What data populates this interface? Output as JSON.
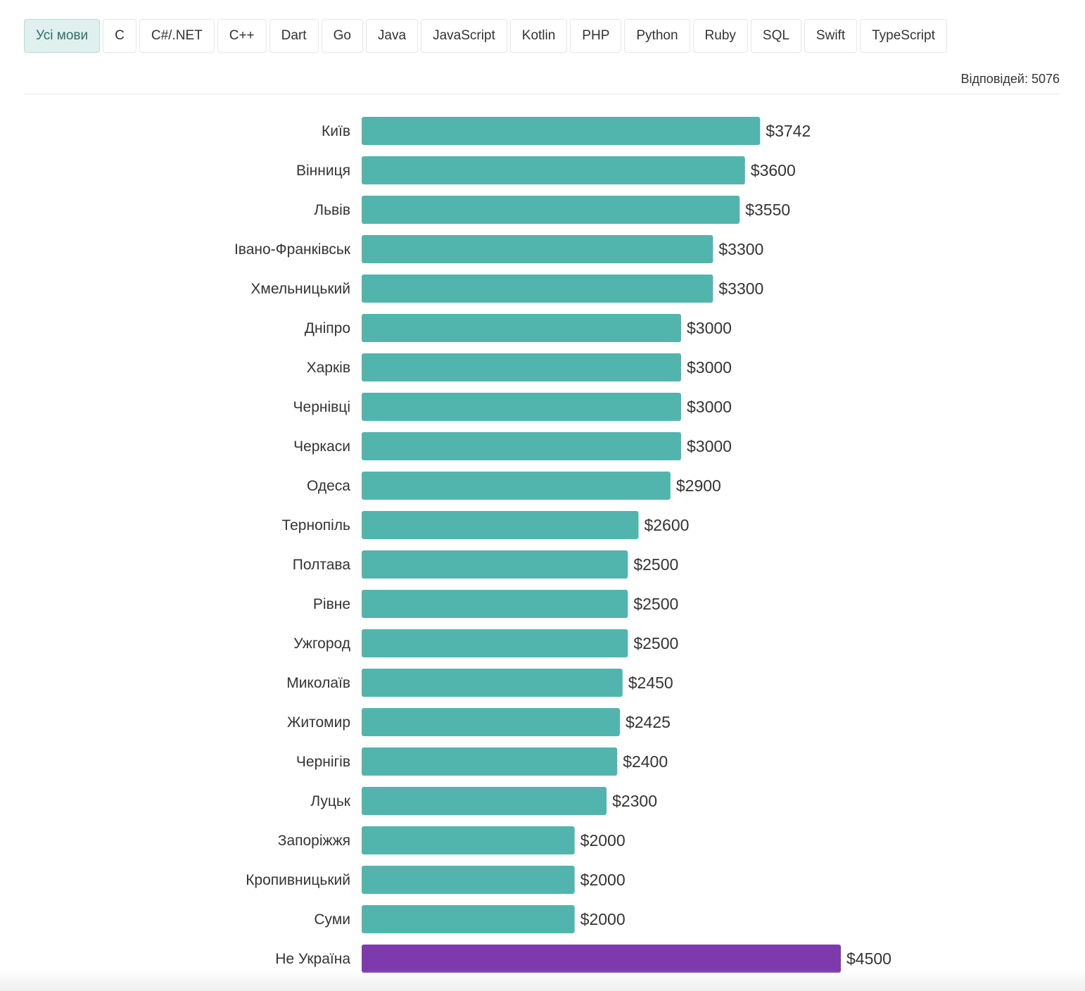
{
  "tabs": [
    {
      "label": "Усі мови",
      "active": true
    },
    {
      "label": "C",
      "active": false
    },
    {
      "label": "C#/.NET",
      "active": false
    },
    {
      "label": "C++",
      "active": false
    },
    {
      "label": "Dart",
      "active": false
    },
    {
      "label": "Go",
      "active": false
    },
    {
      "label": "Java",
      "active": false
    },
    {
      "label": "JavaScript",
      "active": false
    },
    {
      "label": "Kotlin",
      "active": false
    },
    {
      "label": "PHP",
      "active": false
    },
    {
      "label": "Python",
      "active": false
    },
    {
      "label": "Ruby",
      "active": false
    },
    {
      "label": "SQL",
      "active": false
    },
    {
      "label": "Swift",
      "active": false
    },
    {
      "label": "TypeScript",
      "active": false
    }
  ],
  "responses_label": "Відповідей: 5076",
  "colors": {
    "bar": "#52b5ad",
    "highlight": "#7d3aad",
    "label": "#333333"
  },
  "chart_data": {
    "type": "bar",
    "orientation": "horizontal",
    "categories": [
      "Київ",
      "Вінниця",
      "Львів",
      "Івано-Франківськ",
      "Хмельницький",
      "Дніпро",
      "Харків",
      "Чернівці",
      "Черкаси",
      "Одеса",
      "Тернопіль",
      "Полтава",
      "Рівне",
      "Ужгород",
      "Миколаїв",
      "Житомир",
      "Чернігів",
      "Луцьк",
      "Запоріжжя",
      "Кропивницький",
      "Суми",
      "Не Україна"
    ],
    "values": [
      3742,
      3600,
      3550,
      3300,
      3300,
      3000,
      3000,
      3000,
      3000,
      2900,
      2600,
      2500,
      2500,
      2500,
      2450,
      2425,
      2400,
      2300,
      2000,
      2000,
      2000,
      4500
    ],
    "value_labels": [
      "$3742",
      "$3600",
      "$3550",
      "$3300",
      "$3300",
      "$3000",
      "$3000",
      "$3000",
      "$3000",
      "$2900",
      "$2600",
      "$2500",
      "$2500",
      "$2500",
      "$2450",
      "$2425",
      "$2400",
      "$2300",
      "$2000",
      "$2000",
      "$2000",
      "$4500"
    ],
    "highlight": [
      false,
      false,
      false,
      false,
      false,
      false,
      false,
      false,
      false,
      false,
      false,
      false,
      false,
      false,
      false,
      false,
      false,
      false,
      false,
      false,
      false,
      true
    ],
    "xlim": [
      0,
      4500
    ],
    "title": "",
    "xlabel": "",
    "ylabel": "",
    "grid": false
  }
}
